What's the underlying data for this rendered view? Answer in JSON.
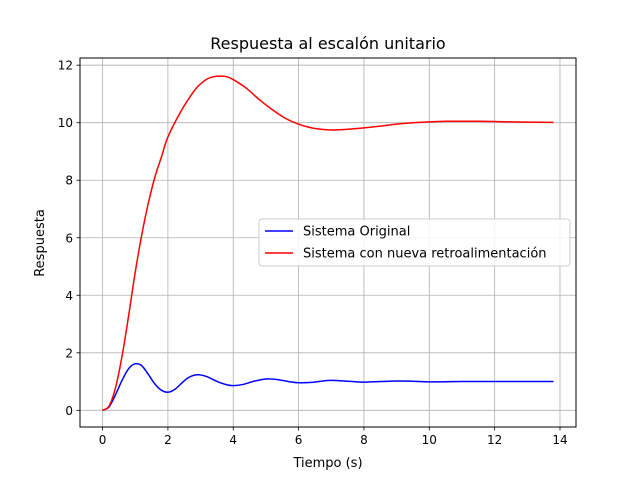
{
  "chart_data": {
    "type": "line",
    "title": "Respuesta al escalón unitario",
    "xlabel": "Tiempo (s)",
    "ylabel": "Respuesta",
    "xlim": [
      -0.69,
      14.49
    ],
    "ylim": [
      -0.58,
      12.25
    ],
    "xticks": [
      0,
      2,
      4,
      6,
      8,
      10,
      12,
      14
    ],
    "yticks": [
      0,
      2,
      4,
      6,
      8,
      10,
      12
    ],
    "xtick_labels": [
      "0",
      "2",
      "4",
      "6",
      "8",
      "10",
      "12",
      "14"
    ],
    "ytick_labels": [
      "0",
      "2",
      "4",
      "6",
      "8",
      "10",
      "12"
    ],
    "grid": true,
    "legend_position": "center-right",
    "series": [
      {
        "name": "Sistema Original",
        "color": "#0000ff",
        "x": [
          0,
          0.2,
          0.4,
          0.6,
          0.8,
          1.0,
          1.2,
          1.4,
          1.6,
          1.8,
          2.0,
          2.2,
          2.4,
          2.6,
          2.8,
          3.0,
          3.2,
          3.4,
          3.6,
          3.8,
          4.0,
          4.3,
          4.6,
          5.0,
          5.4,
          5.8,
          6.0,
          6.4,
          6.8,
          7.0,
          7.4,
          7.8,
          8.0,
          8.5,
          9.0,
          9.5,
          10.0,
          11.0,
          12.0,
          13.0,
          13.8
        ],
        "y": [
          0,
          0.12,
          0.55,
          1.05,
          1.45,
          1.62,
          1.55,
          1.25,
          0.92,
          0.7,
          0.63,
          0.72,
          0.92,
          1.12,
          1.22,
          1.23,
          1.17,
          1.06,
          0.96,
          0.89,
          0.86,
          0.9,
          1.0,
          1.09,
          1.06,
          0.98,
          0.96,
          0.97,
          1.03,
          1.04,
          1.02,
          0.99,
          0.98,
          1.0,
          1.02,
          1.01,
          0.99,
          1.0,
          1.0,
          1.0,
          1.0
        ]
      },
      {
        "name": "Sistema con nueva retroalimentación",
        "color": "#ff0000",
        "x": [
          0,
          0.2,
          0.4,
          0.6,
          0.8,
          1.0,
          1.2,
          1.4,
          1.6,
          1.8,
          2.0,
          2.4,
          2.8,
          3.0,
          3.2,
          3.4,
          3.6,
          3.8,
          4.0,
          4.4,
          4.8,
          5.2,
          5.6,
          6.0,
          6.4,
          6.8,
          7.2,
          7.6,
          8.0,
          8.5,
          9.0,
          9.5,
          10.0,
          10.5,
          11.0,
          11.5,
          12.0,
          12.5,
          13.0,
          13.8
        ],
        "y": [
          0,
          0.15,
          0.8,
          1.9,
          3.3,
          4.8,
          6.1,
          7.2,
          8.1,
          8.8,
          9.5,
          10.4,
          11.1,
          11.35,
          11.52,
          11.6,
          11.62,
          11.6,
          11.5,
          11.2,
          10.8,
          10.45,
          10.15,
          9.95,
          9.82,
          9.76,
          9.75,
          9.78,
          9.82,
          9.88,
          9.95,
          10.0,
          10.03,
          10.05,
          10.05,
          10.05,
          10.04,
          10.03,
          10.02,
          10.01
        ]
      }
    ]
  }
}
